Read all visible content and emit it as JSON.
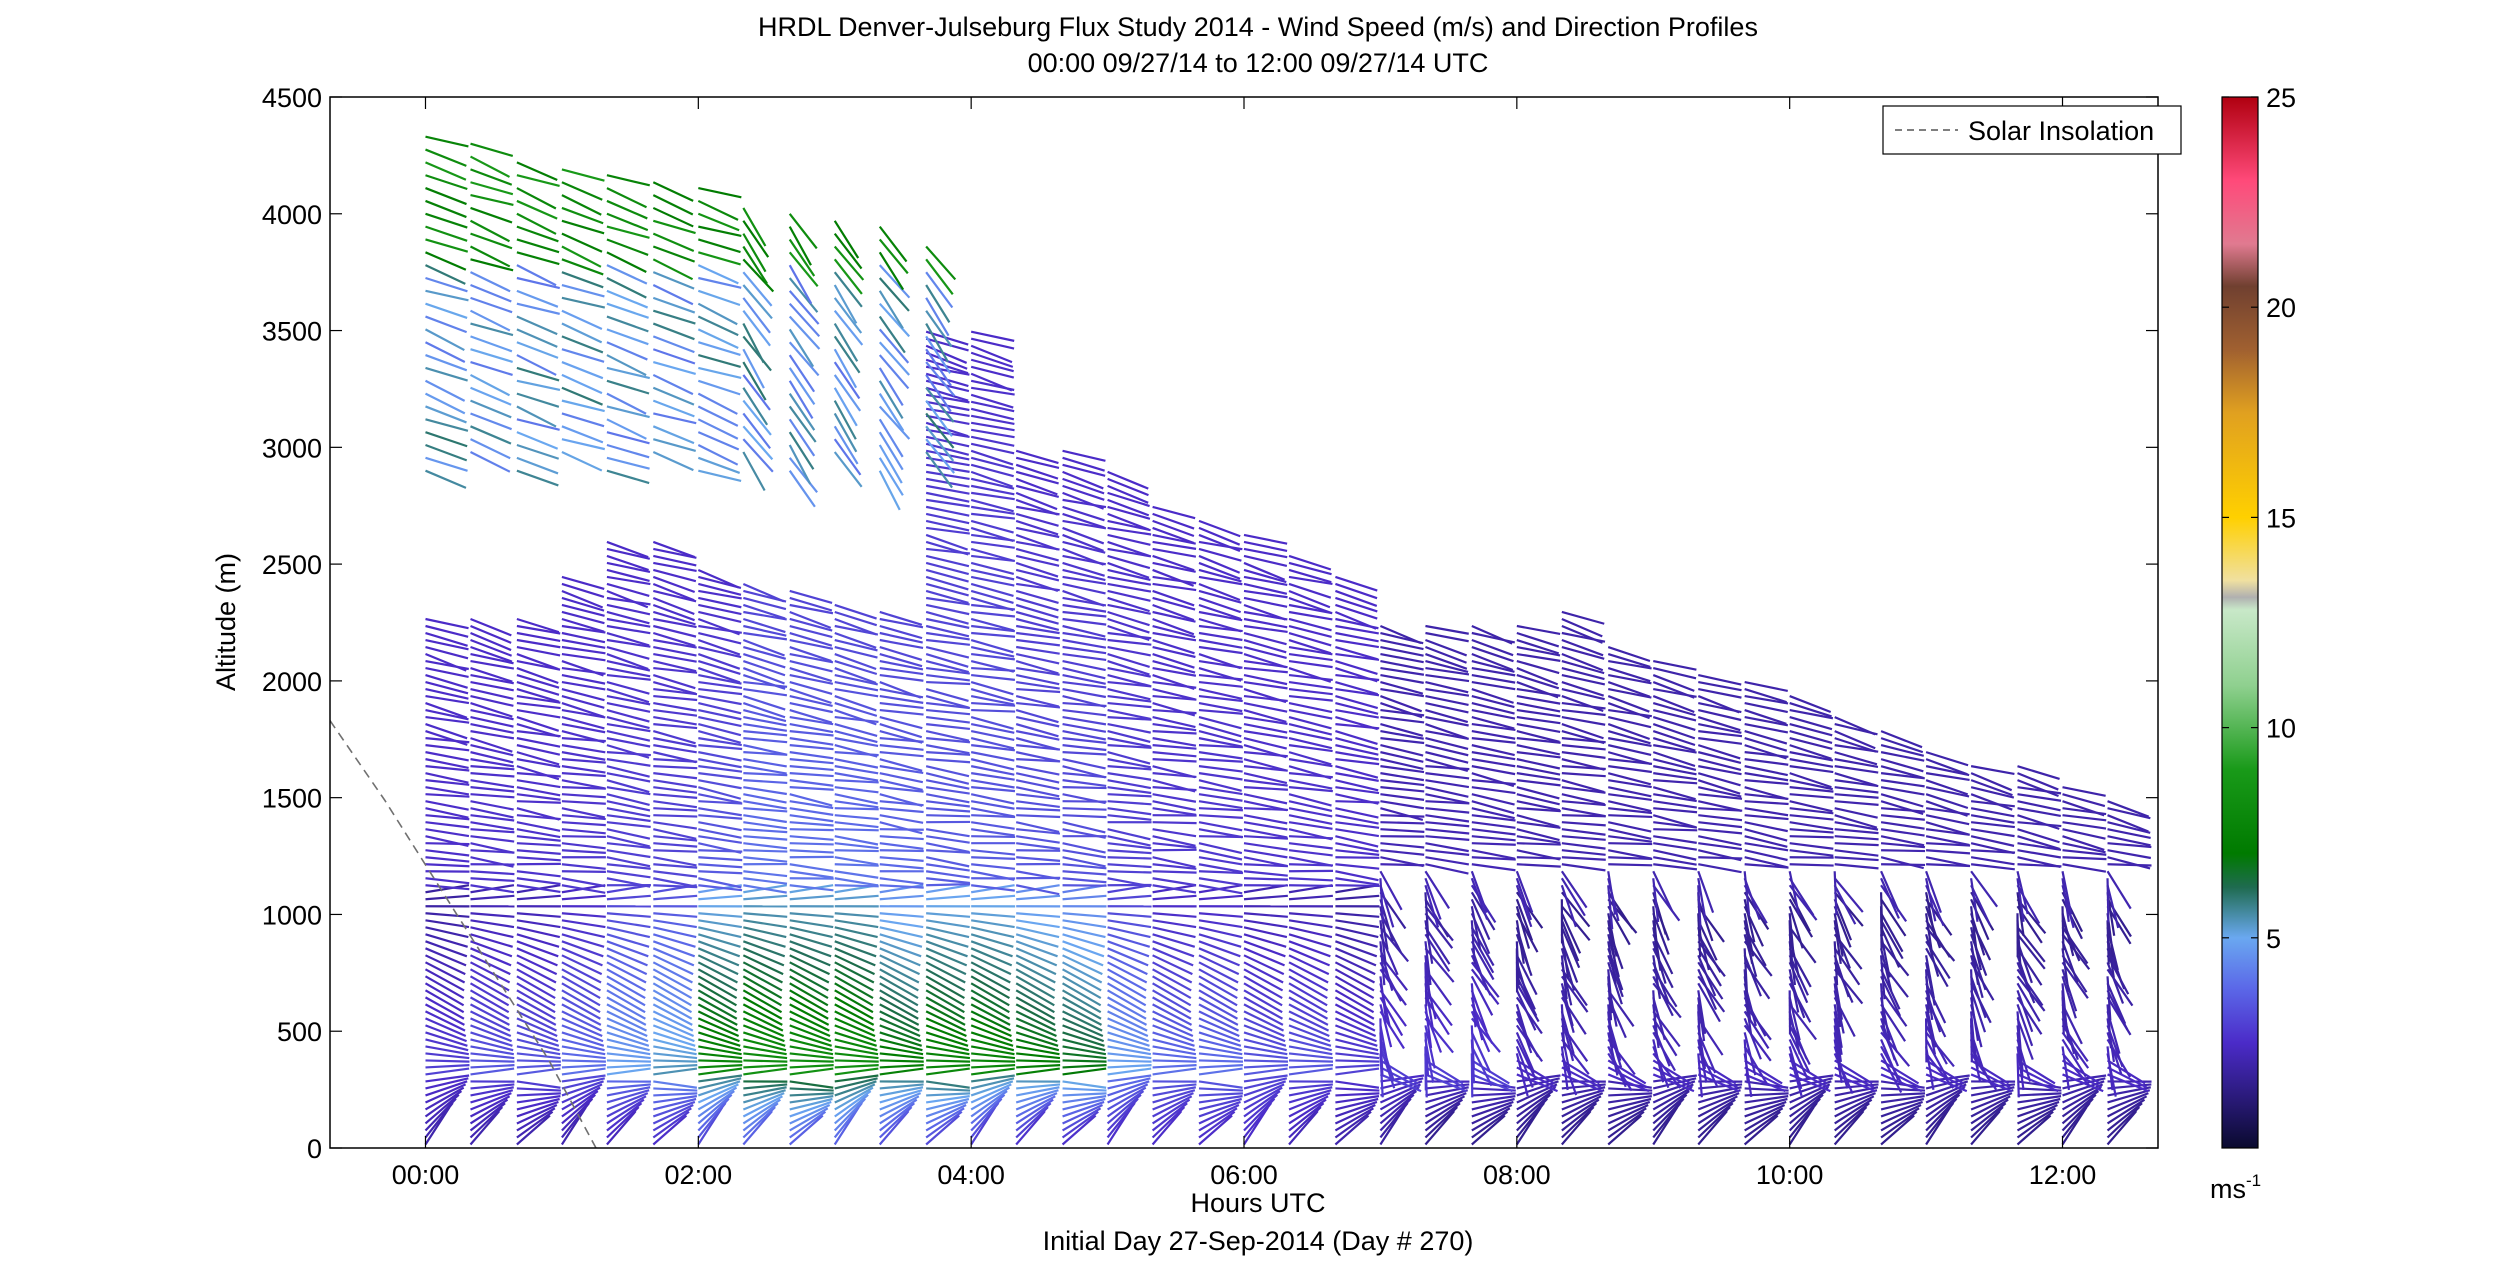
{
  "chart_data": {
    "type": "scatter",
    "subtype": "wind-barb profile (height–time)",
    "title": "HRDL Denver-Julseburg Flux Study 2014 - Wind Speed (m/s) and Direction Profiles",
    "subtitle": "00:00 09/27/14 to 12:00 09/27/14  UTC",
    "xlabel": "Hours UTC",
    "xlabel2": "Initial Day 27-Sep-2014 (Day # 270)",
    "ylabel": "Altitude (m)",
    "x_ticks": [
      "00:00",
      "02:00",
      "04:00",
      "06:00",
      "08:00",
      "10:00",
      "12:00"
    ],
    "x_tick_values": [
      0,
      2,
      4,
      6,
      8,
      10,
      12
    ],
    "xlim": [
      -0.7,
      12.7
    ],
    "y_ticks": [
      "0",
      "500",
      "1000",
      "1500",
      "2000",
      "2500",
      "3000",
      "3500",
      "4000",
      "4500"
    ],
    "ylim": [
      0,
      4500
    ],
    "grid": false,
    "legend": {
      "position": "top-right",
      "entries": [
        "Solar Insolation"
      ]
    },
    "colorbar": {
      "label": "ms",
      "label_exponent": "-1",
      "range": [
        0,
        25
      ],
      "ticks": [
        "5",
        "10",
        "15",
        "20",
        "25"
      ],
      "tick_values": [
        5,
        10,
        15,
        20,
        25
      ],
      "stops": [
        {
          "v": 0,
          "color": "#0a0a2e"
        },
        {
          "v": 1.2,
          "color": "#2a1a7a"
        },
        {
          "v": 2.5,
          "color": "#4b2bc8"
        },
        {
          "v": 3.8,
          "color": "#5b68e8"
        },
        {
          "v": 5.0,
          "color": "#6aa8f0"
        },
        {
          "v": 6.2,
          "color": "#1f6b50"
        },
        {
          "v": 7.0,
          "color": "#007a00"
        },
        {
          "v": 9.0,
          "color": "#199a19"
        },
        {
          "v": 11.0,
          "color": "#8fd08f"
        },
        {
          "v": 12.8,
          "color": "#c8e8c8"
        },
        {
          "v": 13.1,
          "color": "#b0b0b0"
        },
        {
          "v": 13.5,
          "color": "#f0e0a0"
        },
        {
          "v": 15.0,
          "color": "#ffd000"
        },
        {
          "v": 17.5,
          "color": "#e0a020"
        },
        {
          "v": 19.0,
          "color": "#a06030"
        },
        {
          "v": 20.5,
          "color": "#704030"
        },
        {
          "v": 21.5,
          "color": "#e07a90"
        },
        {
          "v": 23.0,
          "color": "#ff4a7a"
        },
        {
          "v": 25.0,
          "color": "#b00010"
        }
      ]
    },
    "solar_insolation": {
      "x": [
        -0.7,
        -0.3,
        0.1,
        0.5,
        0.9,
        1.25
      ],
      "y": [
        1830,
        1490,
        1120,
        750,
        380,
        0
      ],
      "color": "#707070",
      "style": "dashed"
    },
    "profile_times": [
      0.0,
      0.33,
      0.67,
      1.0,
      1.33,
      1.67,
      2.0,
      2.33,
      2.67,
      3.0,
      3.33,
      3.67,
      4.0,
      4.33,
      4.67,
      5.0,
      5.33,
      5.67,
      6.0,
      6.33,
      6.67,
      7.0,
      7.33,
      7.67,
      8.0,
      8.33,
      8.67,
      9.0,
      9.33,
      9.67,
      10.0,
      10.33,
      10.67,
      11.0,
      11.33,
      11.67,
      12.0,
      12.33
    ],
    "profile_top_m": [
      2280,
      2280,
      2280,
      2450,
      2600,
      2600,
      2500,
      2420,
      2400,
      2350,
      2300,
      3500,
      3500,
      3000,
      3000,
      2900,
      2750,
      2700,
      2650,
      2550,
      2450,
      2250,
      2250,
      2250,
      2250,
      2300,
      2150,
      2100,
      2050,
      2000,
      1950,
      1850,
      1800,
      1700,
      1650,
      1650,
      1550,
      1500
    ],
    "surface_speed_ms": [
      2.0,
      2.0,
      2.0,
      2.0,
      2.2,
      2.5,
      3.0,
      3.5,
      3.5,
      3.5,
      3.2,
      3.0,
      2.8,
      2.5,
      2.5,
      2.5,
      2.5,
      2.5,
      2.5,
      2.2,
      2.0,
      1.8,
      1.5,
      1.5,
      1.5,
      1.5,
      1.5,
      1.5,
      1.5,
      1.5,
      1.5,
      1.5,
      1.5,
      1.5,
      1.5,
      1.5,
      1.5,
      1.5
    ],
    "lowlevel_max_speed_ms": [
      3.0,
      3.5,
      3.5,
      4.0,
      5.0,
      5.5,
      8.0,
      8.5,
      8.5,
      8.5,
      7.5,
      8.0,
      8.0,
      7.5,
      7.0,
      5.0,
      4.0,
      4.0,
      3.5,
      3.5,
      3.0,
      3.0,
      3.0,
      3.0,
      2.5,
      2.5,
      2.5,
      2.5,
      2.5,
      2.5,
      2.5,
      2.5,
      2.5,
      2.5,
      2.5,
      2.5,
      2.5,
      2.5
    ],
    "upper_speed_ms": [
      2.5,
      2.5,
      2.5,
      2.5,
      2.5,
      2.5,
      2.5,
      3.0,
      3.0,
      3.0,
      3.0,
      2.5,
      2.5,
      2.5,
      2.5,
      2.5,
      2.5,
      2.5,
      2.5,
      2.5,
      2.5,
      2.0,
      2.0,
      2.0,
      2.0,
      2.0,
      2.0,
      2.0,
      2.0,
      2.0,
      2.0,
      2.0,
      2.0,
      2.0,
      2.0,
      2.0,
      2.0,
      2.0
    ],
    "upper_layer_speed_ms": 8.0,
    "upper_layer_times": [
      0.0,
      0.33,
      0.67,
      1.0,
      1.33,
      1.67,
      2.0,
      2.33,
      2.67,
      3.0,
      3.33,
      3.67
    ],
    "upper_layer_range_m": [
      2900,
      4350
    ],
    "barb_direction_deg": "mostly westerly aloft, turning with height below 1000 m"
  }
}
